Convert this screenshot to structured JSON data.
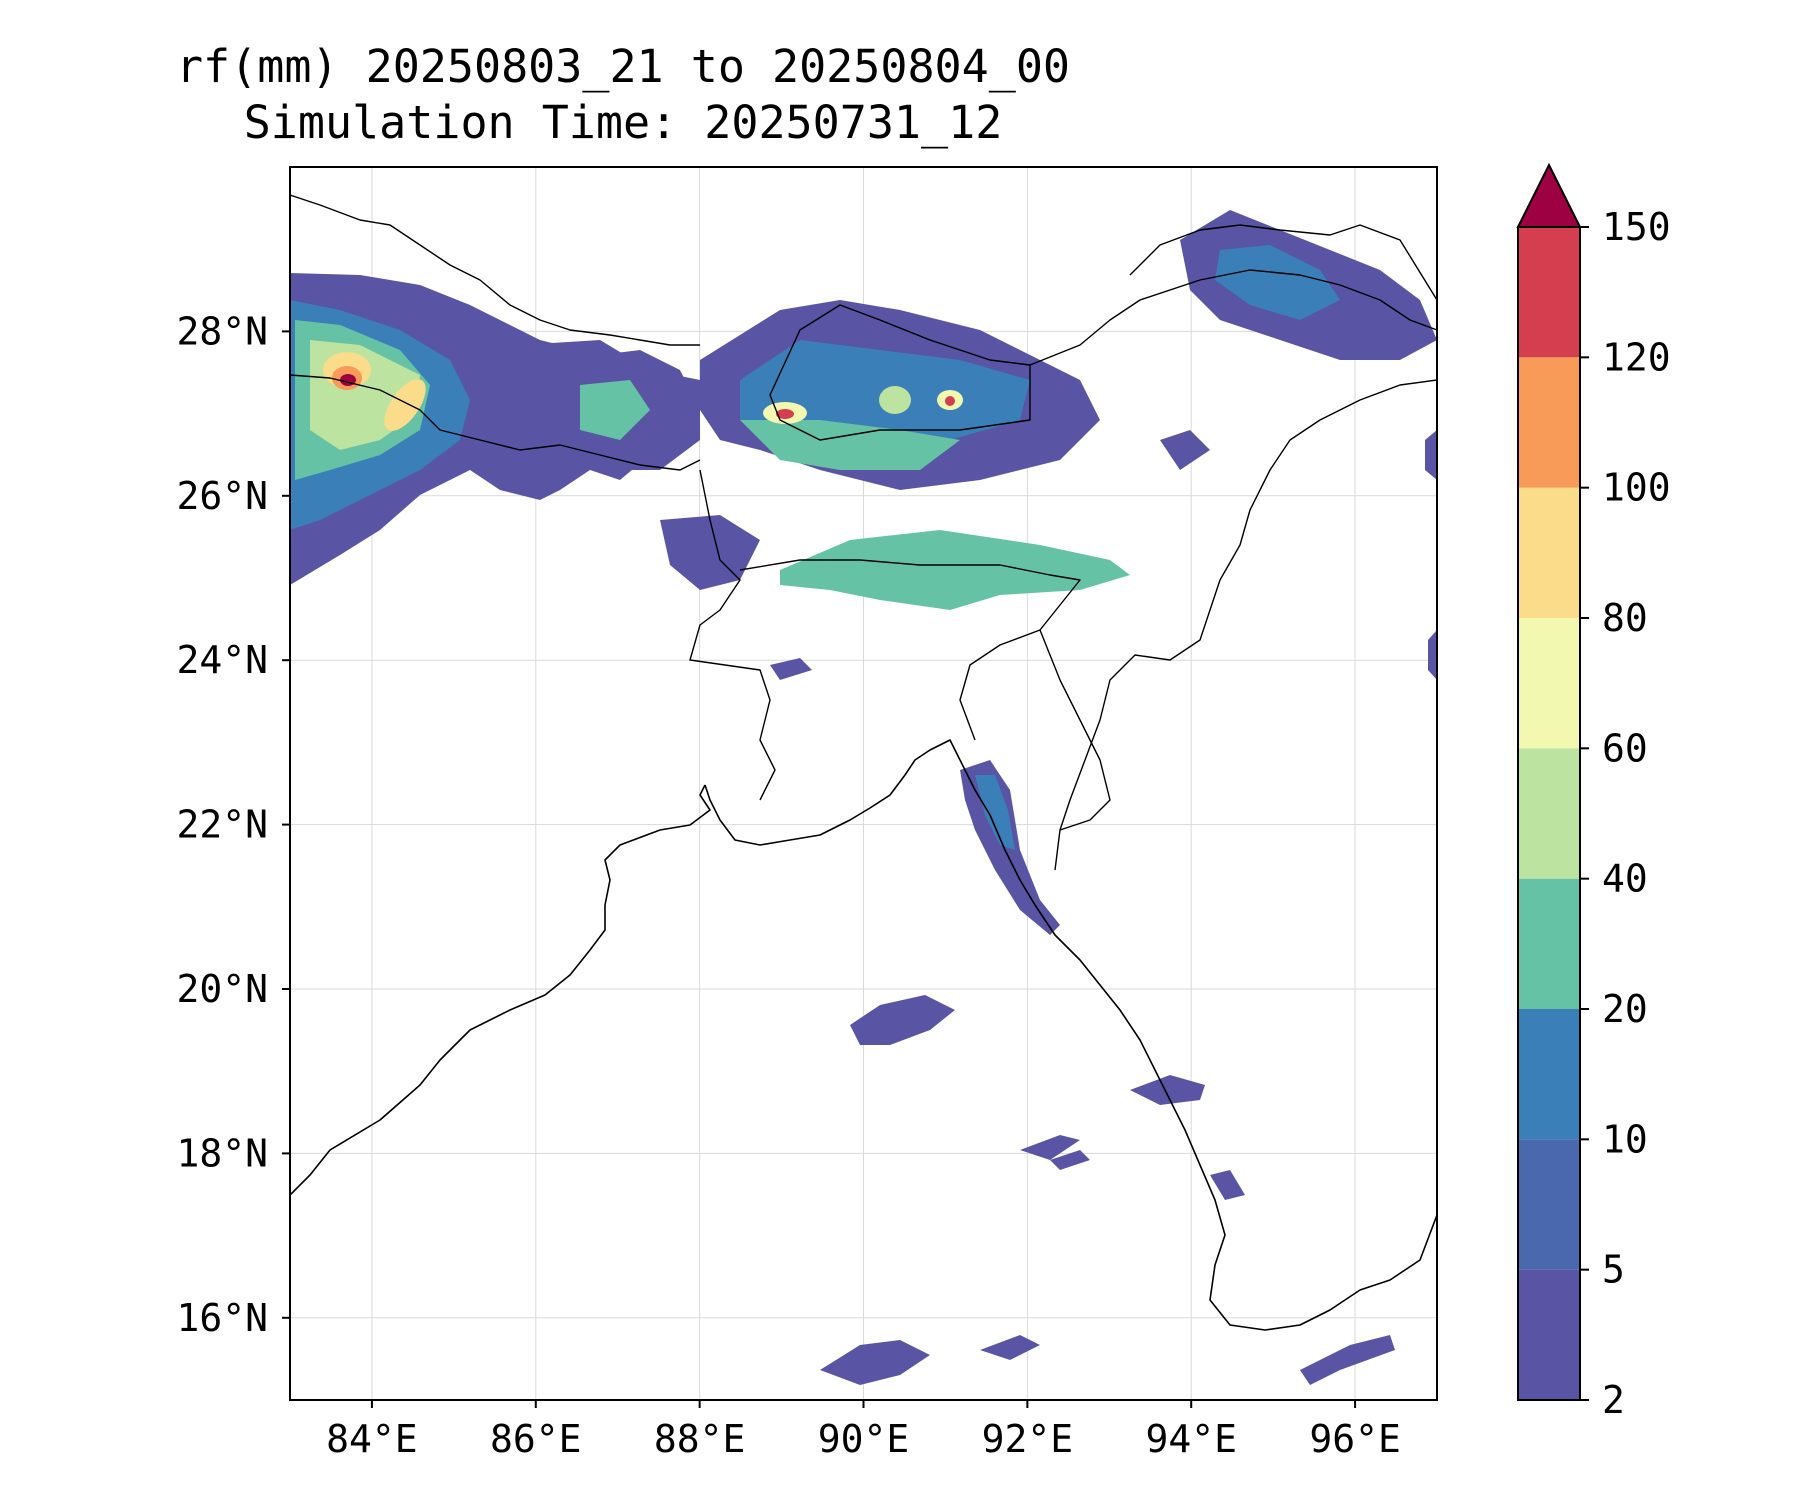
{
  "title": {
    "line1": "rf(mm) 20250803_21 to 20250804_00",
    "line2": "Simulation Time: 20250731_12"
  },
  "map": {
    "variable": "rf(mm)",
    "extent": {
      "lon_min": 83.0,
      "lon_max": 97.0,
      "lat_min": 15.0,
      "lat_max": 30.0
    },
    "x_ticks": [
      {
        "lon": 84,
        "label": "84°E"
      },
      {
        "lon": 86,
        "label": "86°E"
      },
      {
        "lon": 88,
        "label": "88°E"
      },
      {
        "lon": 90,
        "label": "90°E"
      },
      {
        "lon": 92,
        "label": "92°E"
      },
      {
        "lon": 94,
        "label": "94°E"
      },
      {
        "lon": 96,
        "label": "96°E"
      }
    ],
    "y_ticks": [
      {
        "lat": 28,
        "label": "28°N"
      },
      {
        "lat": 26,
        "label": "26°N"
      },
      {
        "lat": 24,
        "label": "24°N"
      },
      {
        "lat": 22,
        "label": "22°N"
      },
      {
        "lat": 20,
        "label": "20°N"
      },
      {
        "lat": 18,
        "label": "18°N"
      },
      {
        "lat": 16,
        "label": "16°N"
      }
    ],
    "gridlines": true
  },
  "colorbar": {
    "levels": [
      2,
      5,
      10,
      20,
      40,
      60,
      80,
      100,
      120,
      150
    ],
    "labels": [
      "2",
      "5",
      "10",
      "20",
      "40",
      "60",
      "80",
      "100",
      "120",
      "150"
    ],
    "colors": [
      "#5954a4",
      "#4a68ad",
      "#3a7fb8",
      "#66c2a5",
      "#bde3a0",
      "#f2f8b0",
      "#fbdc8b",
      "#f89b58",
      "#d53e4f"
    ],
    "extend_color": "#9e0142",
    "extend": "max"
  },
  "colors": {
    "c2": "#5954a4",
    "c5": "#4a68ad",
    "c10": "#3a7fb8",
    "c20": "#66c2a5",
    "c40": "#bde3a0",
    "c60": "#f2f8b0",
    "c80": "#fbdc8b",
    "c100": "#f89b58",
    "c120": "#d53e4f",
    "c150": "#9e0142"
  }
}
